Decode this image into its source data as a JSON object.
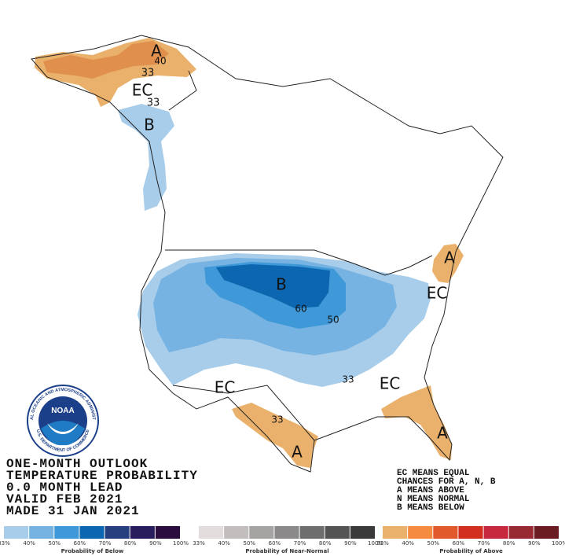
{
  "map_labels": [
    "A",
    "40",
    "33",
    "EC",
    "33",
    "B",
    "B",
    "60",
    "50",
    "EC",
    "A",
    "EC",
    "33",
    "EC",
    "33",
    "A",
    "A"
  ],
  "title_block": [
    "ONE-MONTH OUTLOOK",
    "TEMPERATURE PROBABILITY",
    "0.0 MONTH LEAD",
    "VALID FEB 2021",
    "MADE 31 JAN 2021"
  ],
  "legend_notes": [
    "EC MEANS EQUAL",
    "CHANCES FOR A, N, B",
    "A MEANS ABOVE",
    "N MEANS NORMAL",
    "B MEANS BELOW"
  ],
  "logo": {
    "name": "NOAA",
    "ring_top": "NATIONAL OCEANIC AND ATMOSPHERIC ADMINISTRATION",
    "ring_bottom": "U.S. DEPARTMENT OF COMMERCE"
  },
  "color_bars": [
    {
      "caption": "Probability of Below",
      "colors": [
        "#a8cdea",
        "#76b3e2",
        "#3f98d7",
        "#0d66b0",
        "#26407f",
        "#2a1d5d",
        "#2b0c3e"
      ],
      "ticks": [
        "33%",
        "40%",
        "50%",
        "60%",
        "70%",
        "80%",
        "90%",
        "100%"
      ]
    },
    {
      "caption": "Probability of Near-Normal",
      "colors": [
        "#e2dcdc",
        "#c3bebe",
        "#a6a3a3",
        "#8b8989",
        "#6f6e6e",
        "#545454",
        "#3a3a3a"
      ],
      "ticks": [
        "33%",
        "40%",
        "50%",
        "60%",
        "70%",
        "80%",
        "90%",
        "100%"
      ]
    },
    {
      "caption": "Probability of Above",
      "colors": [
        "#e9b16c",
        "#f58b40",
        "#e15a2c",
        "#d22f21",
        "#c7283d",
        "#972a33",
        "#6b1c22"
      ],
      "ticks": [
        "33%",
        "40%",
        "50%",
        "60%",
        "70%",
        "80%",
        "90%",
        "100%"
      ]
    }
  ]
}
